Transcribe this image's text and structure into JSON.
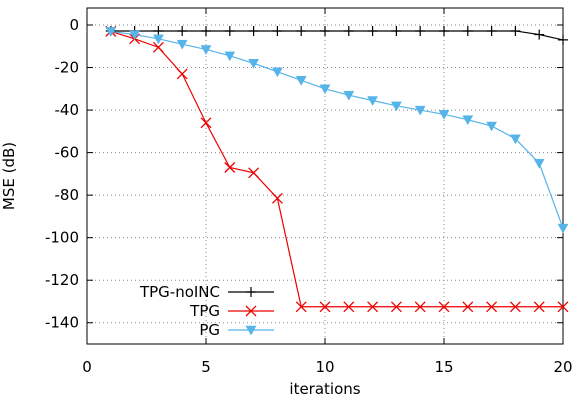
{
  "chart_data": {
    "type": "line",
    "title": "",
    "xlabel": "iterations",
    "ylabel": "MSE (dB)",
    "xlim": [
      0,
      20
    ],
    "ylim": [
      -150,
      8
    ],
    "xticks": [
      0,
      5,
      10,
      15,
      20
    ],
    "yticks": [
      0,
      -20,
      -40,
      -60,
      -80,
      -100,
      -120,
      -140
    ],
    "grid": true,
    "grid_style": "dotted",
    "legend_position": "bottom-left",
    "series": [
      {
        "name": "TPG-noINC",
        "color": "#000000",
        "marker": "plus",
        "x": [
          1,
          2,
          3,
          4,
          5,
          6,
          7,
          8,
          9,
          10,
          11,
          12,
          13,
          14,
          15,
          16,
          17,
          18,
          19,
          20
        ],
        "y": [
          -2.8,
          -2.8,
          -2.8,
          -2.8,
          -2.8,
          -2.8,
          -2.8,
          -2.8,
          -2.8,
          -2.8,
          -2.8,
          -2.8,
          -2.8,
          -2.8,
          -2.8,
          -2.8,
          -2.8,
          -2.8,
          -4.5,
          -7
        ]
      },
      {
        "name": "TPG",
        "color": "#ee0000",
        "marker": "x",
        "x": [
          1,
          2,
          3,
          4,
          5,
          6,
          7,
          8,
          9,
          10,
          11,
          12,
          13,
          14,
          15,
          16,
          17,
          18,
          19,
          20
        ],
        "y": [
          -3,
          -6.5,
          -10.5,
          -23,
          -46,
          -67,
          -69.5,
          -81.5,
          -132.5,
          -132.5,
          -132.5,
          -132.5,
          -132.5,
          -132.5,
          -132.5,
          -132.5,
          -132.5,
          -132.5,
          -132.5,
          -132.5
        ]
      },
      {
        "name": "PG",
        "color": "#56b4e9",
        "marker": "triangle-down",
        "x": [
          1,
          2,
          3,
          4,
          5,
          6,
          7,
          8,
          9,
          10,
          11,
          12,
          13,
          14,
          15,
          16,
          17,
          18,
          19,
          20
        ],
        "y": [
          -3,
          -4.5,
          -6.5,
          -9,
          -11.5,
          -14.5,
          -18,
          -22,
          -26,
          -30,
          -33,
          -35.5,
          -38,
          -40,
          -42,
          -44.5,
          -47.5,
          -53.5,
          -65,
          -95.5
        ]
      }
    ]
  }
}
